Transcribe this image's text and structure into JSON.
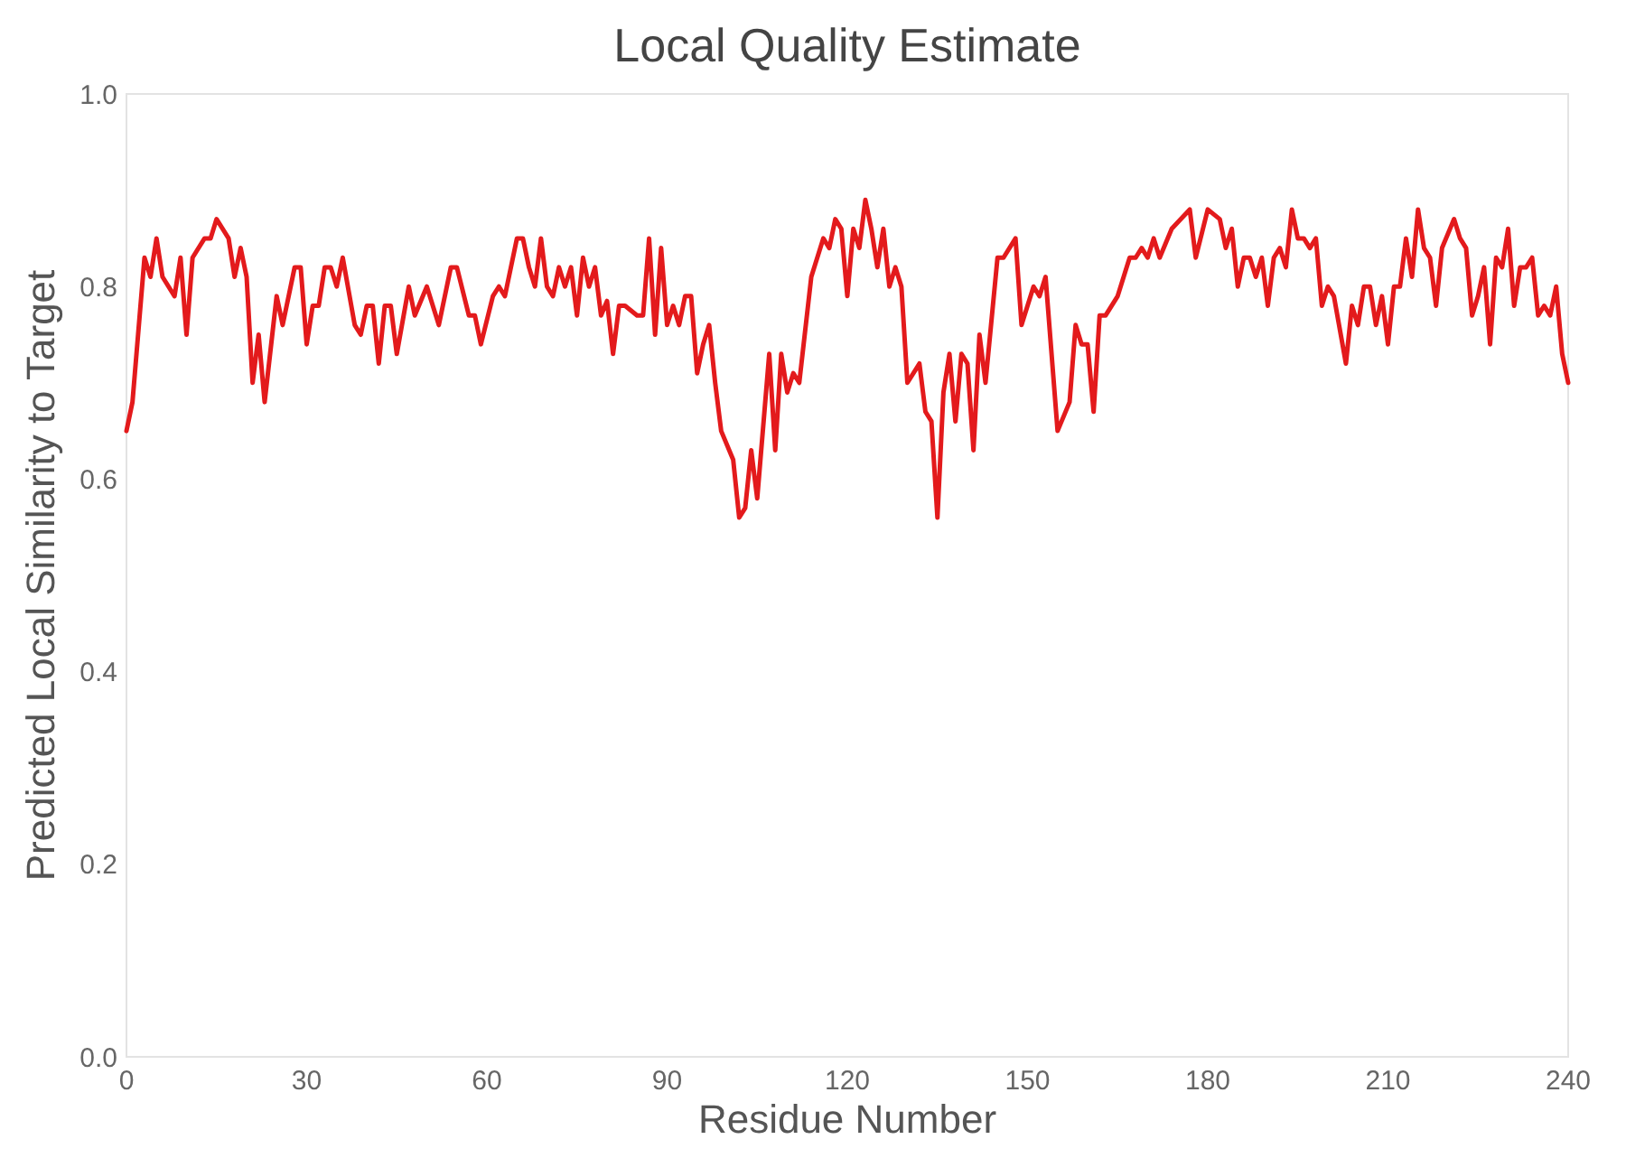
{
  "chart_data": {
    "type": "line",
    "title": "Local Quality Estimate",
    "xlabel": "Residue Number",
    "ylabel": "Predicted Local Similarity to Target",
    "x": [
      0,
      1,
      3,
      4,
      5,
      6,
      8,
      9,
      10,
      11,
      13,
      14,
      15,
      17,
      18,
      19,
      20,
      21,
      22,
      23,
      25,
      26,
      28,
      29,
      30,
      31,
      32,
      33,
      34,
      35,
      36,
      38,
      39,
      40,
      41,
      42,
      43,
      44,
      45,
      47,
      48,
      50,
      52,
      54,
      55,
      57,
      58,
      59,
      61,
      62,
      63,
      65,
      66,
      67,
      68,
      69,
      70,
      71,
      72,
      73,
      74,
      75,
      76,
      77,
      78,
      79,
      80,
      81,
      82,
      83,
      85,
      86,
      87,
      88,
      89,
      90,
      91,
      92,
      93,
      94,
      95,
      96,
      97,
      98,
      99,
      101,
      102,
      103,
      104,
      105,
      107,
      108,
      109,
      110,
      111,
      112,
      114,
      116,
      117,
      118,
      119,
      120,
      121,
      122,
      123,
      124,
      125,
      126,
      127,
      128,
      129,
      130,
      132,
      133,
      134,
      135,
      136,
      137,
      138,
      139,
      140,
      141,
      142,
      143,
      145,
      146,
      148,
      149,
      151,
      152,
      153,
      155,
      157,
      158,
      159,
      160,
      161,
      162,
      163,
      165,
      167,
      168,
      169,
      170,
      171,
      172,
      174,
      177,
      178,
      180,
      182,
      183,
      184,
      185,
      186,
      187,
      188,
      189,
      190,
      191,
      192,
      193,
      194,
      195,
      196,
      197,
      198,
      199,
      200,
      201,
      203,
      204,
      205,
      206,
      207,
      208,
      209,
      210,
      211,
      212,
      213,
      214,
      215,
      216,
      217,
      218,
      219,
      221,
      222,
      223,
      224,
      225,
      226,
      227,
      228,
      229,
      230,
      231,
      232,
      233,
      234,
      235,
      236,
      237,
      238,
      239,
      240
    ],
    "series": [
      {
        "color": "#e31a1c",
        "values": [
          0.65,
          0.68,
          0.83,
          0.81,
          0.85,
          0.81,
          0.79,
          0.83,
          0.75,
          0.83,
          0.85,
          0.85,
          0.87,
          0.85,
          0.81,
          0.84,
          0.81,
          0.7,
          0.75,
          0.68,
          0.79,
          0.76,
          0.82,
          0.82,
          0.74,
          0.78,
          0.78,
          0.82,
          0.82,
          0.8,
          0.83,
          0.76,
          0.75,
          0.78,
          0.78,
          0.72,
          0.78,
          0.78,
          0.73,
          0.8,
          0.77,
          0.8,
          0.76,
          0.82,
          0.82,
          0.77,
          0.77,
          0.74,
          0.79,
          0.8,
          0.79,
          0.85,
          0.85,
          0.82,
          0.8,
          0.85,
          0.8,
          0.79,
          0.82,
          0.8,
          0.82,
          0.77,
          0.83,
          0.8,
          0.82,
          0.77,
          0.785,
          0.73,
          0.78,
          0.78,
          0.77,
          0.77,
          0.85,
          0.75,
          0.84,
          0.76,
          0.78,
          0.76,
          0.79,
          0.79,
          0.71,
          0.74,
          0.76,
          0.7,
          0.65,
          0.62,
          0.56,
          0.57,
          0.63,
          0.58,
          0.73,
          0.63,
          0.73,
          0.69,
          0.71,
          0.7,
          0.81,
          0.85,
          0.84,
          0.87,
          0.86,
          0.79,
          0.86,
          0.84,
          0.89,
          0.86,
          0.82,
          0.86,
          0.8,
          0.82,
          0.8,
          0.7,
          0.72,
          0.67,
          0.66,
          0.56,
          0.69,
          0.73,
          0.66,
          0.73,
          0.72,
          0.63,
          0.75,
          0.7,
          0.83,
          0.83,
          0.85,
          0.76,
          0.8,
          0.79,
          0.81,
          0.65,
          0.68,
          0.76,
          0.74,
          0.74,
          0.67,
          0.77,
          0.77,
          0.79,
          0.83,
          0.83,
          0.84,
          0.83,
          0.85,
          0.83,
          0.86,
          0.88,
          0.83,
          0.88,
          0.87,
          0.84,
          0.86,
          0.8,
          0.83,
          0.83,
          0.81,
          0.83,
          0.78,
          0.83,
          0.84,
          0.82,
          0.88,
          0.85,
          0.85,
          0.84,
          0.85,
          0.78,
          0.8,
          0.79,
          0.72,
          0.78,
          0.76,
          0.8,
          0.8,
          0.76,
          0.79,
          0.74,
          0.8,
          0.8,
          0.85,
          0.81,
          0.88,
          0.84,
          0.83,
          0.78,
          0.84,
          0.87,
          0.85,
          0.84,
          0.77,
          0.79,
          0.82,
          0.74,
          0.83,
          0.82,
          0.86,
          0.78,
          0.82,
          0.82,
          0.83,
          0.77,
          0.78,
          0.77,
          0.8,
          0.73,
          0.7
        ]
      }
    ],
    "xlim": [
      0,
      240
    ],
    "xticks": [
      0,
      30,
      60,
      90,
      120,
      150,
      180,
      210,
      240
    ],
    "ylim": [
      0,
      1
    ],
    "yticks": [
      {
        "value": 0,
        "label": "0.0"
      },
      0.2,
      0.4,
      0.6,
      0.8,
      {
        "value": 1,
        "label": "1.0"
      }
    ],
    "grid": false,
    "marker": "none",
    "line_style": "solid"
  }
}
